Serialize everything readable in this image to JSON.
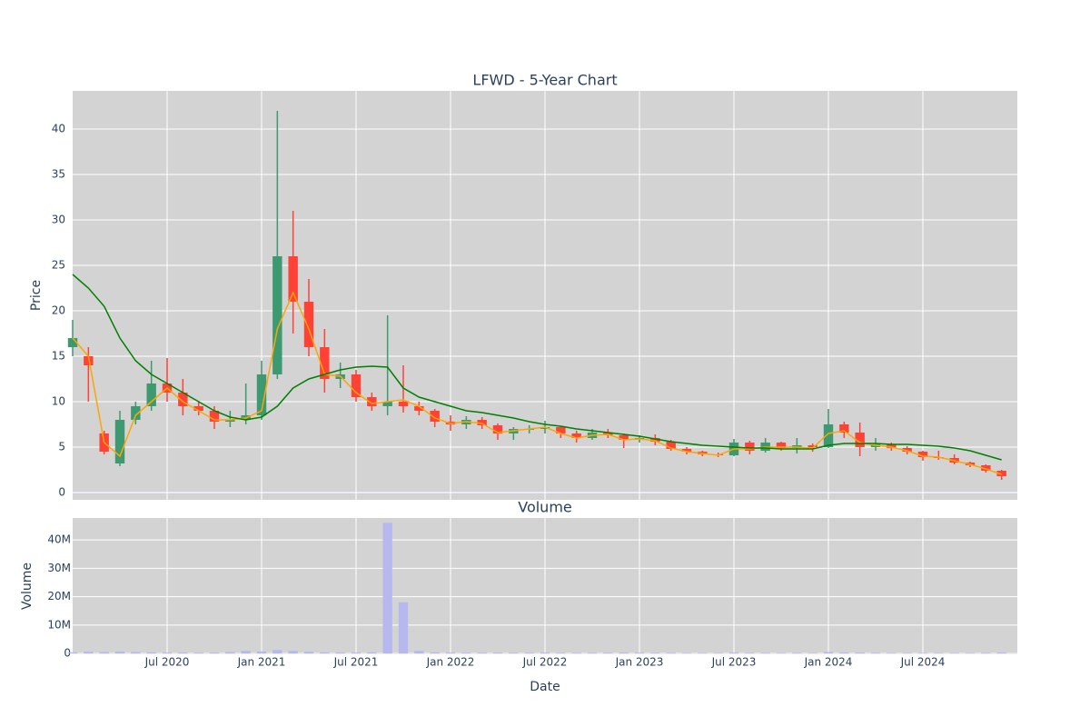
{
  "chart_data": {
    "type": "candlestick",
    "title": "LFWD - 5-Year Chart",
    "ylabel": "Price",
    "xlabel": "Date",
    "x": [
      "2020-01",
      "2020-02",
      "2020-03",
      "2020-04",
      "2020-05",
      "2020-06",
      "2020-07",
      "2020-08",
      "2020-09",
      "2020-10",
      "2020-11",
      "2020-12",
      "2021-01",
      "2021-02",
      "2021-03",
      "2021-04",
      "2021-05",
      "2021-06",
      "2021-07",
      "2021-08",
      "2021-09",
      "2021-10",
      "2021-11",
      "2021-12",
      "2022-01",
      "2022-02",
      "2022-03",
      "2022-04",
      "2022-05",
      "2022-06",
      "2022-07",
      "2022-08",
      "2022-09",
      "2022-10",
      "2022-11",
      "2022-12",
      "2023-01",
      "2023-02",
      "2023-03",
      "2023-04",
      "2023-05",
      "2023-06",
      "2023-07",
      "2023-08",
      "2023-09",
      "2023-10",
      "2023-11",
      "2023-12",
      "2024-01",
      "2024-02",
      "2024-03",
      "2024-04",
      "2024-05",
      "2024-06",
      "2024-07",
      "2024-08",
      "2024-09",
      "2024-10",
      "2024-11",
      "2024-12"
    ],
    "open": [
      16,
      15,
      6.5,
      3.2,
      8,
      9.5,
      12,
      11,
      9.5,
      9,
      7.8,
      8,
      8.5,
      13,
      26,
      21,
      16,
      12.5,
      13,
      10.5,
      9.5,
      10,
      9.5,
      9,
      7.8,
      7.5,
      8,
      7.4,
      6.5,
      7,
      7,
      7.2,
      6.5,
      6,
      6.6,
      6.3,
      5.8,
      6,
      5.6,
      4.8,
      4.5,
      4.2,
      4.1,
      5.5,
      4.6,
      5.5,
      4.9,
      5.2,
      5,
      7.5,
      6.6,
      5,
      5.3,
      4.9,
      4.5,
      3.9,
      3.8,
      3.3,
      3,
      2.4
    ],
    "high": [
      19,
      16,
      6.8,
      9,
      10,
      14.5,
      14.8,
      12.5,
      10,
      9.5,
      9,
      12,
      14.5,
      42,
      31,
      23.5,
      18,
      14.3,
      13.5,
      11,
      19.5,
      14,
      10,
      9.2,
      8.5,
      8.4,
      8.3,
      7.6,
      7.2,
      7.4,
      7.9,
      7.3,
      6.8,
      7,
      7,
      6.5,
      6.3,
      6.4,
      5.8,
      5,
      4.6,
      4.4,
      5.9,
      5.7,
      6,
      5.6,
      6,
      5.4,
      9.2,
      7.8,
      7.7,
      6,
      5.5,
      5.1,
      4.6,
      4.6,
      4.2,
      3.4,
      3.1,
      2.5
    ],
    "low": [
      15,
      10,
      4.2,
      2.9,
      7.5,
      9,
      10,
      8.5,
      8.5,
      7,
      7.2,
      7.5,
      8,
      12.5,
      17.5,
      15,
      11,
      11.5,
      10,
      9,
      8.5,
      8.8,
      8.5,
      7.2,
      6.8,
      7,
      7,
      5.8,
      5.8,
      6.5,
      6.5,
      6,
      5.5,
      5.8,
      6,
      4.9,
      5.5,
      5.2,
      4.6,
      4.2,
      4,
      3.9,
      4,
      4.2,
      4.4,
      4.6,
      4.3,
      4.5,
      4.9,
      6,
      4,
      4.6,
      4.6,
      4.2,
      3.5,
      3.6,
      3.1,
      2.8,
      2.2,
      1.4
    ],
    "close": [
      17,
      14,
      4.5,
      8,
      9.5,
      12,
      11,
      9.5,
      9,
      7.8,
      8,
      8.5,
      13,
      26,
      21,
      16,
      12.5,
      13,
      10.5,
      9.5,
      10,
      9.5,
      9,
      7.8,
      7.5,
      8,
      7.4,
      6.5,
      7,
      7,
      7.2,
      6.5,
      6,
      6.6,
      6.3,
      5.8,
      6,
      5.6,
      4.8,
      4.5,
      4.2,
      4.1,
      5.5,
      4.6,
      5.5,
      4.9,
      5.2,
      5,
      7.5,
      6.6,
      5,
      5.3,
      4.9,
      4.5,
      3.9,
      3.8,
      3.3,
      3,
      2.4,
      1.8
    ],
    "increasing_color": "#3d9970",
    "decreasing_color": "#ff4136",
    "lines": [
      {
        "color": "#ffa500",
        "values": [
          17,
          15,
          5.5,
          4,
          8.5,
          10,
          11.5,
          10,
          9,
          8,
          8,
          8.2,
          9,
          18,
          22,
          18,
          13,
          12.8,
          11,
          9.8,
          10,
          10.2,
          9.5,
          8.2,
          7.6,
          7.8,
          7.6,
          6.6,
          6.8,
          7,
          7.2,
          6.5,
          6,
          6.3,
          6.4,
          5.8,
          5.9,
          5.7,
          4.9,
          4.5,
          4.3,
          4.1,
          4.8,
          4.8,
          5,
          5,
          5,
          4.9,
          6.5,
          6.8,
          5.5,
          5.2,
          5,
          4.6,
          4,
          3.9,
          3.5,
          3.1,
          2.6,
          2
        ]
      },
      {
        "color": "#008000",
        "values": [
          24,
          22.5,
          20.5,
          17,
          14.5,
          13,
          12,
          11,
          10,
          9,
          8.3,
          8,
          8.3,
          9.5,
          11.5,
          12.5,
          13,
          13.5,
          13.8,
          13.9,
          13.8,
          11.5,
          10.5,
          10,
          9.5,
          9,
          8.8,
          8.5,
          8.2,
          7.8,
          7.5,
          7.3,
          7,
          6.8,
          6.6,
          6.4,
          6.2,
          5.9,
          5.6,
          5.4,
          5.2,
          5.1,
          5,
          4.9,
          4.9,
          4.8,
          4.8,
          4.8,
          5.2,
          5.4,
          5.4,
          5.4,
          5.3,
          5.3,
          5.2,
          5.1,
          4.9,
          4.6,
          4.1,
          3.6
        ]
      }
    ],
    "xlim": [
      "2020-01",
      "2025-01"
    ],
    "xticks": [
      {
        "value": "2020-07",
        "label": "Jul 2020"
      },
      {
        "value": "2021-01",
        "label": "Jan 2021"
      },
      {
        "value": "2021-07",
        "label": "Jul 2021"
      },
      {
        "value": "2022-01",
        "label": "Jan 2022"
      },
      {
        "value": "2022-07",
        "label": "Jul 2022"
      },
      {
        "value": "2023-01",
        "label": "Jan 2023"
      },
      {
        "value": "2023-07",
        "label": "Jul 2023"
      },
      {
        "value": "2024-01",
        "label": "Jan 2024"
      },
      {
        "value": "2024-07",
        "label": "Jul 2024"
      }
    ],
    "ylim": [
      -0.8,
      44.2
    ],
    "yticks": [
      0,
      5,
      10,
      15,
      20,
      25,
      30,
      35,
      40
    ],
    "grid": true,
    "volume": {
      "title": "Volume",
      "ylabel": "Volume",
      "color": "#b8b8f0",
      "values": [
        400000,
        600000,
        500000,
        700000,
        500000,
        400000,
        300000,
        300000,
        250000,
        300000,
        500000,
        900000,
        700000,
        1200000,
        900000,
        600000,
        400000,
        300000,
        300000,
        400000,
        46000000,
        18000000,
        900000,
        400000,
        300000,
        250000,
        250000,
        300000,
        250000,
        250000,
        300000,
        200000,
        200000,
        200000,
        250000,
        300000,
        250000,
        200000,
        200000,
        150000,
        150000,
        150000,
        300000,
        200000,
        200000,
        150000,
        200000,
        150000,
        500000,
        300000,
        300000,
        200000,
        150000,
        150000,
        150000,
        150000,
        150000,
        150000,
        200000,
        300000
      ],
      "ylim": [
        -300000,
        47700000
      ],
      "yticks": [
        0,
        {
          "value": 10000000,
          "label": "10M"
        },
        {
          "value": 20000000,
          "label": "20M"
        },
        {
          "value": 30000000,
          "label": "30M"
        },
        {
          "value": 40000000,
          "label": "40M"
        }
      ]
    }
  }
}
